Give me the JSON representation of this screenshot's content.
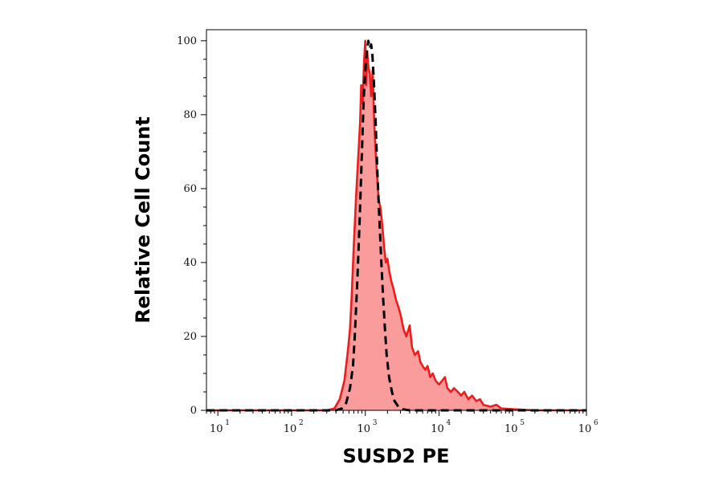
{
  "chart_data": {
    "type": "area",
    "xlabel": "SUSD2 PE",
    "ylabel": "Relative Cell Count",
    "x_scale": "log",
    "xlim": [
      7,
      1000000
    ],
    "ylim": [
      0,
      103
    ],
    "x_ticks": [
      {
        "value": 10,
        "base": "10",
        "exp": "1"
      },
      {
        "value": 100,
        "base": "10",
        "exp": "2"
      },
      {
        "value": 1000,
        "base": "10",
        "exp": "3"
      },
      {
        "value": 10000,
        "base": "10",
        "exp": "4"
      },
      {
        "value": 100000,
        "base": "10",
        "exp": "5"
      },
      {
        "value": 1000000,
        "base": "10",
        "exp": "6"
      }
    ],
    "y_ticks": [
      {
        "value": 0,
        "label": "0"
      },
      {
        "value": 20,
        "label": "20"
      },
      {
        "value": 40,
        "label": "40"
      },
      {
        "value": 60,
        "label": "60"
      },
      {
        "value": 80,
        "label": "80"
      },
      {
        "value": 100,
        "label": "100"
      }
    ],
    "grid": false,
    "series": [
      {
        "style": "filled-solid",
        "color": "#ee1c1c",
        "fill": "#fb9c9c",
        "points": [
          [
            7,
            0
          ],
          [
            300,
            0
          ],
          [
            380,
            0.5
          ],
          [
            450,
            3
          ],
          [
            520,
            8
          ],
          [
            580,
            16
          ],
          [
            620,
            22
          ],
          [
            650,
            30
          ],
          [
            700,
            45
          ],
          [
            750,
            58
          ],
          [
            800,
            68
          ],
          [
            850,
            78
          ],
          [
            880,
            88
          ],
          [
            920,
            83
          ],
          [
            960,
            94
          ],
          [
            1000,
            100
          ],
          [
            1030,
            88
          ],
          [
            1060,
            97
          ],
          [
            1100,
            93
          ],
          [
            1150,
            91
          ],
          [
            1200,
            85
          ],
          [
            1260,
            92
          ],
          [
            1320,
            78
          ],
          [
            1380,
            70
          ],
          [
            1450,
            63
          ],
          [
            1520,
            57
          ],
          [
            1600,
            55
          ],
          [
            1700,
            50
          ],
          [
            1800,
            44
          ],
          [
            1900,
            40
          ],
          [
            2000,
            41
          ],
          [
            2100,
            38
          ],
          [
            2250,
            35
          ],
          [
            2400,
            33
          ],
          [
            2600,
            30
          ],
          [
            2800,
            28
          ],
          [
            3000,
            26
          ],
          [
            3300,
            22
          ],
          [
            3600,
            20
          ],
          [
            4000,
            23
          ],
          [
            4300,
            17
          ],
          [
            4700,
            15
          ],
          [
            5200,
            16
          ],
          [
            5600,
            13
          ],
          [
            6000,
            12
          ],
          [
            6500,
            11
          ],
          [
            7000,
            12
          ],
          [
            7600,
            9
          ],
          [
            8200,
            10
          ],
          [
            9000,
            8
          ],
          [
            10000,
            7
          ],
          [
            11000,
            8
          ],
          [
            12000,
            9
          ],
          [
            13000,
            6
          ],
          [
            14500,
            5
          ],
          [
            16000,
            6
          ],
          [
            18000,
            5
          ],
          [
            20000,
            4
          ],
          [
            22000,
            5
          ],
          [
            25000,
            3
          ],
          [
            28000,
            4
          ],
          [
            32000,
            2.5
          ],
          [
            36000,
            3
          ],
          [
            40000,
            1.5
          ],
          [
            50000,
            1
          ],
          [
            60000,
            1.5
          ],
          [
            70000,
            0.5
          ],
          [
            100000,
            0.3
          ],
          [
            200000,
            0
          ],
          [
            1000000,
            0
          ]
        ]
      },
      {
        "style": "dashed",
        "color": "#000000",
        "points": [
          [
            7,
            0
          ],
          [
            400,
            0
          ],
          [
            480,
            0.5
          ],
          [
            550,
            2
          ],
          [
            620,
            6
          ],
          [
            680,
            12
          ],
          [
            720,
            20
          ],
          [
            780,
            35
          ],
          [
            840,
            52
          ],
          [
            900,
            70
          ],
          [
            950,
            84
          ],
          [
            1000,
            92
          ],
          [
            1050,
            97
          ],
          [
            1100,
            100
          ],
          [
            1150,
            98
          ],
          [
            1200,
            99
          ],
          [
            1250,
            96
          ],
          [
            1300,
            90
          ],
          [
            1380,
            78
          ],
          [
            1450,
            66
          ],
          [
            1550,
            52
          ],
          [
            1650,
            40
          ],
          [
            1750,
            30
          ],
          [
            1850,
            22
          ],
          [
            1950,
            15
          ],
          [
            2100,
            9
          ],
          [
            2300,
            5
          ],
          [
            2500,
            2.5
          ],
          [
            2800,
            1
          ],
          [
            3200,
            0.3
          ],
          [
            4000,
            0
          ],
          [
            1000000,
            0
          ]
        ]
      }
    ]
  }
}
